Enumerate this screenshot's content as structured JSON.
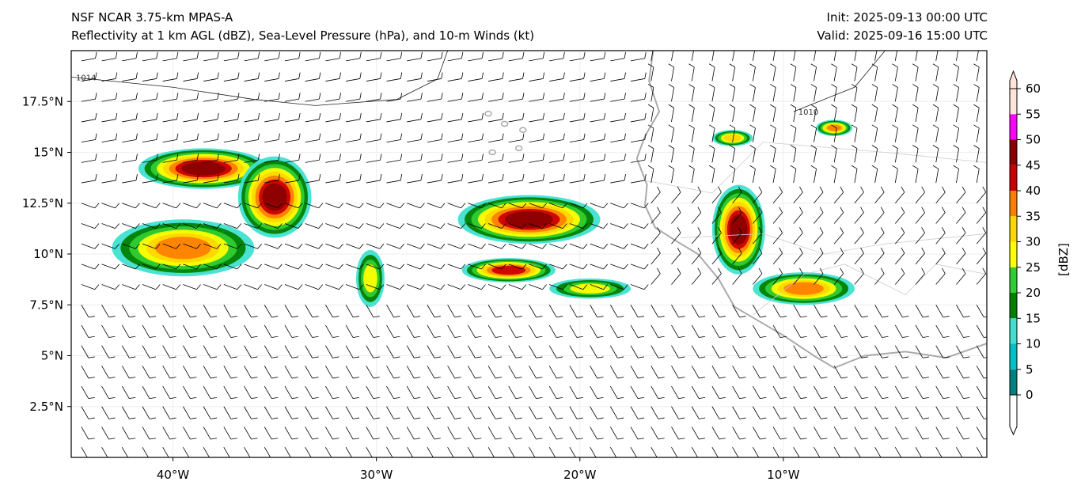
{
  "header": {
    "title_line1": "NSF NCAR 3.75-km MPAS-A",
    "title_line2": "Reflectivity at 1 km AGL (dBZ), Sea-Level Pressure (hPa), and 10-m Winds (kt)",
    "init": "Init: 2025-09-13 00:00 UTC",
    "valid": "Valid: 2025-09-16 15:00 UTC"
  },
  "chart_data": {
    "type": "heatmap",
    "extent": {
      "lon": [
        -45,
        0
      ],
      "lat": [
        0,
        20
      ]
    },
    "x_ticks": [
      {
        "value": -40,
        "label": "40°W"
      },
      {
        "value": -30,
        "label": "30°W"
      },
      {
        "value": -20,
        "label": "20°W"
      },
      {
        "value": -10,
        "label": "10°W"
      }
    ],
    "y_ticks": [
      {
        "value": 2.5,
        "label": "2.5°N"
      },
      {
        "value": 5,
        "label": "5°N"
      },
      {
        "value": 7.5,
        "label": "7.5°N"
      },
      {
        "value": 10,
        "label": "10°N"
      },
      {
        "value": 12.5,
        "label": "12.5°N"
      },
      {
        "value": 15,
        "label": "15°N"
      },
      {
        "value": 17.5,
        "label": "17.5°N"
      }
    ],
    "colorbar": {
      "label": "[dBZ]",
      "ticks": [
        "0",
        "5",
        "10",
        "15",
        "20",
        "25",
        "30",
        "35",
        "40",
        "45",
        "50",
        "55",
        "60"
      ],
      "colors": [
        "#008080",
        "#00c0c8",
        "#40e0d0",
        "#008000",
        "#32cd32",
        "#ffff00",
        "#ffd700",
        "#ff8000",
        "#cc0000",
        "#8b0000",
        "#ff00ff",
        "#ffe4da"
      ]
    },
    "pressure_contours": [
      {
        "label": "1014",
        "points": [
          [
            -45,
            18.7
          ],
          [
            -40,
            18.2
          ],
          [
            -36,
            17.6
          ],
          [
            -33,
            17.3
          ],
          [
            -29,
            17.6
          ],
          [
            -27,
            18.6
          ],
          [
            -26.5,
            20
          ]
        ]
      },
      {
        "label": "1010",
        "points": [
          [
            -9.5,
            17.0
          ],
          [
            -8,
            17.6
          ],
          [
            -6.5,
            18.2
          ],
          [
            -5,
            20
          ]
        ]
      }
    ],
    "coastline": [
      [
        -16.4,
        20
      ],
      [
        -16.6,
        18.5
      ],
      [
        -16.1,
        17.0
      ],
      [
        -16.8,
        15.8
      ],
      [
        -17.2,
        14.7
      ],
      [
        -16.7,
        13.4
      ],
      [
        -16.8,
        12.4
      ],
      [
        -16.3,
        11.3
      ],
      [
        -15.2,
        10.6
      ],
      [
        -14.2,
        10.0
      ],
      [
        -13.2,
        8.8
      ],
      [
        -12.4,
        7.4
      ],
      [
        -11.2,
        6.7
      ],
      [
        -10.0,
        6.0
      ],
      [
        -8.5,
        5.0
      ],
      [
        -7.5,
        4.4
      ],
      [
        -6.0,
        5.0
      ],
      [
        -4.0,
        5.2
      ],
      [
        -2.0,
        4.9
      ],
      [
        0,
        5.6
      ]
    ],
    "storms": [
      {
        "lon": -38.5,
        "lat": 14.2,
        "rx": 3.2,
        "ry": 1.0,
        "max": 45
      },
      {
        "lon": -35.0,
        "lat": 12.8,
        "rx": 1.8,
        "ry": 2.0,
        "max": 45
      },
      {
        "lon": -39.5,
        "lat": 10.3,
        "rx": 3.5,
        "ry": 1.4,
        "max": 35
      },
      {
        "lon": -30.3,
        "lat": 8.8,
        "rx": 0.7,
        "ry": 1.4,
        "max": 25
      },
      {
        "lon": -22.5,
        "lat": 11.7,
        "rx": 3.5,
        "ry": 1.2,
        "max": 45
      },
      {
        "lon": -23.5,
        "lat": 9.2,
        "rx": 2.3,
        "ry": 0.6,
        "max": 40
      },
      {
        "lon": -19.5,
        "lat": 8.3,
        "rx": 2.0,
        "ry": 0.5,
        "max": 25
      },
      {
        "lon": -12.2,
        "lat": 11.2,
        "rx": 1.3,
        "ry": 2.2,
        "max": 45
      },
      {
        "lon": -9.0,
        "lat": 8.3,
        "rx": 2.5,
        "ry": 0.8,
        "max": 35
      },
      {
        "lon": -12.5,
        "lat": 15.7,
        "rx": 1.0,
        "ry": 0.4,
        "max": 30
      },
      {
        "lon": -7.5,
        "lat": 16.2,
        "rx": 0.9,
        "ry": 0.4,
        "max": 35
      }
    ]
  }
}
